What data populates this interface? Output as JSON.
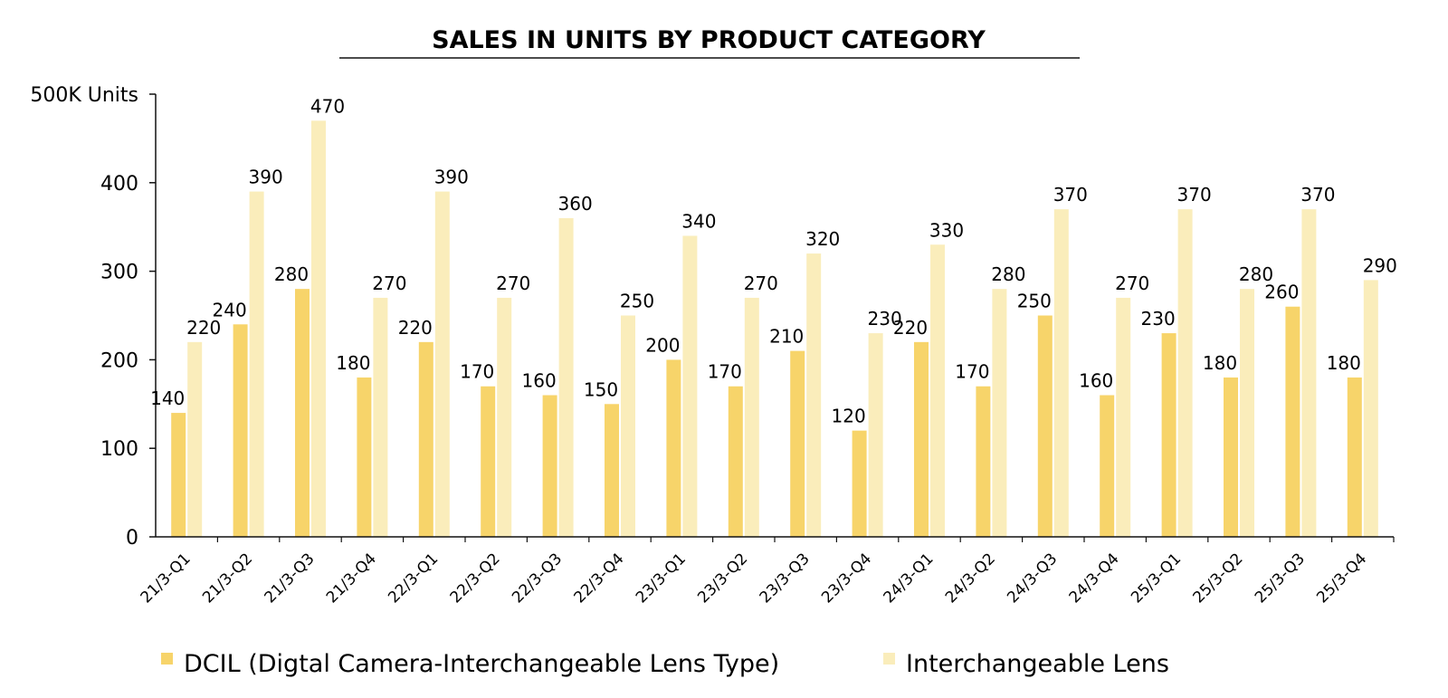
{
  "chart_data": {
    "type": "bar",
    "title": "SALES IN UNITS BY PRODUCT CATEGORY",
    "ylabel": "500K Units",
    "ylim": [
      0,
      500
    ],
    "yticks": [
      "0",
      "100",
      "200",
      "300",
      "400",
      "500K Units"
    ],
    "grid": false,
    "legend_position": "bottom",
    "categories": [
      "21/3-Q1",
      "21/3-Q2",
      "21/3-Q3",
      "21/3-Q4",
      "22/3-Q1",
      "22/3-Q2",
      "22/3-Q3",
      "22/3-Q4",
      "23/3-Q1",
      "23/3-Q2",
      "23/3-Q3",
      "23/3-Q4",
      "24/3-Q1",
      "24/3-Q2",
      "24/3-Q3",
      "24/3-Q4",
      "25/3-Q1",
      "25/3-Q2",
      "25/3-Q3",
      "25/3-Q4"
    ],
    "series": [
      {
        "name": "DCIL (Digtal Camera-Interchangeable Lens Type)",
        "color": "#f7d46a",
        "values": [
          140,
          240,
          280,
          180,
          220,
          170,
          160,
          150,
          200,
          170,
          210,
          120,
          220,
          170,
          250,
          160,
          230,
          180,
          260,
          180
        ]
      },
      {
        "name": "Interchangeable Lens",
        "color": "#faedbb",
        "values": [
          220,
          390,
          470,
          270,
          390,
          270,
          360,
          250,
          340,
          270,
          320,
          230,
          330,
          280,
          370,
          270,
          370,
          280,
          370,
          290
        ]
      }
    ]
  }
}
